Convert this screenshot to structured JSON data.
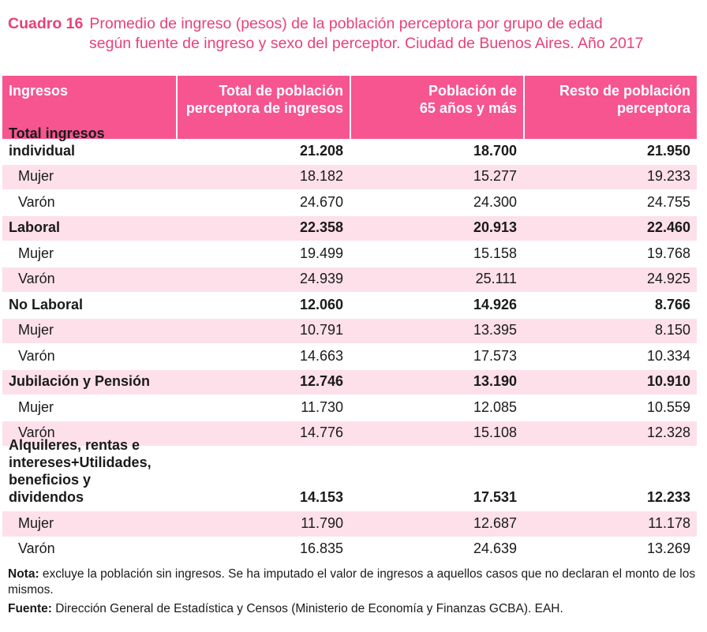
{
  "title": {
    "label": "Cuadro 16",
    "line1": "Promedio de ingreso (pesos) de la población perceptora por grupo de edad",
    "line2": "según fuente de ingreso y sexo del perceptor. Ciudad de Buenos Aires. Año 2017"
  },
  "header": {
    "col0": "Ingresos",
    "col1a": "Total de población",
    "col1b": "perceptora de ingresos",
    "col2a": "Población de",
    "col2b": "65 años y más",
    "col3a": "Resto de población",
    "col3b": "perceptora"
  },
  "rows": [
    {
      "label": "Total ingresos individual",
      "total": "21.208",
      "mayores": "18.700",
      "resto": "21.950"
    },
    {
      "label": "Mujer",
      "total": "18.182",
      "mayores": "15.277",
      "resto": "19.233"
    },
    {
      "label": "Varón",
      "total": "24.670",
      "mayores": "24.300",
      "resto": "24.755"
    },
    {
      "label": "Laboral",
      "total": "22.358",
      "mayores": "20.913",
      "resto": "22.460"
    },
    {
      "label": "Mujer",
      "total": "19.499",
      "mayores": "15.158",
      "resto": "19.768"
    },
    {
      "label": "Varón",
      "total": "24.939",
      "mayores": "25.111",
      "resto": "24.925"
    },
    {
      "label": "No Laboral",
      "total": "12.060",
      "mayores": "14.926",
      "resto": "8.766"
    },
    {
      "label": "Mujer",
      "total": "10.791",
      "mayores": "13.395",
      "resto": "8.150"
    },
    {
      "label": "Varón",
      "total": "14.663",
      "mayores": "17.573",
      "resto": "10.334"
    },
    {
      "label": "Jubilación y Pensión",
      "total": "12.746",
      "mayores": "13.190",
      "resto": "10.910"
    },
    {
      "label": "Mujer",
      "total": "11.730",
      "mayores": "12.085",
      "resto": "10.559"
    },
    {
      "label": "Varón",
      "total": "14.776",
      "mayores": "15.108",
      "resto": "12.328"
    },
    {
      "label_lines": [
        "Alquileres, rentas e",
        "intereses+Utilidades,",
        "beneficios y dividendos"
      ],
      "total": "14.153",
      "mayores": "17.531",
      "resto": "12.233"
    },
    {
      "label": "Mujer",
      "total": "11.790",
      "mayores": "12.687",
      "resto": "11.178"
    },
    {
      "label": "Varón",
      "total": "16.835",
      "mayores": "24.639",
      "resto": "13.269"
    }
  ],
  "notes": {
    "nota_label": "Nota:",
    "nota_text": " excluye la población sin ingresos. Se ha imputado el valor de ingresos a aquellos casos que no declaran el monto de los mismos.",
    "fuente_label": "Fuente:",
    "fuente_text": " Dirección General de Estadística y Censos (Ministerio de Economía y Finanzas GCBA). EAH."
  }
}
